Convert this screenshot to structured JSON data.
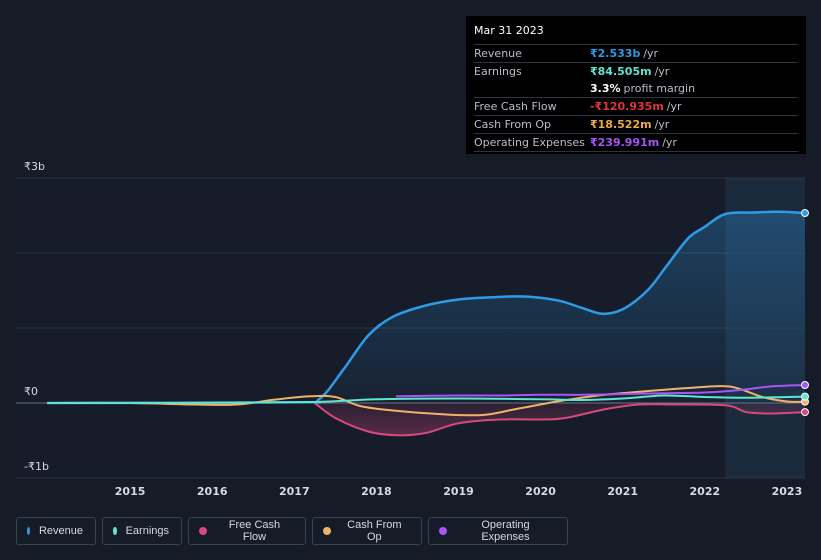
{
  "tooltip": {
    "date": "Mar 31 2023",
    "rows": [
      {
        "label": "Revenue",
        "value": "₹2.533b",
        "unit": "/yr",
        "color": "#2e9be6"
      },
      {
        "label": "Earnings",
        "value": "₹84.505m",
        "unit": "/yr",
        "color": "#5fe5cf"
      },
      {
        "label": "",
        "value": "3.3%",
        "unit": "profit margin",
        "color": "#ffffff"
      },
      {
        "label": "Free Cash Flow",
        "value": "-₹120.935m",
        "unit": "/yr",
        "color": "#e0343f"
      },
      {
        "label": "Cash From Op",
        "value": "₹18.522m",
        "unit": "/yr",
        "color": "#f0a74f"
      },
      {
        "label": "Operating Expenses",
        "value": "₹239.991m",
        "unit": "/yr",
        "color": "#a855f7"
      }
    ]
  },
  "legend": [
    {
      "label": "Revenue",
      "color": "#2e9be6"
    },
    {
      "label": "Earnings",
      "color": "#5fe5cf"
    },
    {
      "label": "Free Cash Flow",
      "color": "#d6487e"
    },
    {
      "label": "Cash From Op",
      "color": "#f0b26a"
    },
    {
      "label": "Operating Expenses",
      "color": "#a855f7"
    }
  ],
  "chart_data": {
    "type": "line",
    "title": "",
    "xlabel": "",
    "ylabel": "",
    "y_tick_labels": [
      "₹3b",
      "₹0",
      "-₹1b"
    ],
    "y_ticks": [
      3,
      0,
      -1
    ],
    "ylim": [
      -1,
      3
    ],
    "xlim": [
      2014.0,
      2023.22
    ],
    "x_tick_labels": [
      "2015",
      "2016",
      "2017",
      "2018",
      "2019",
      "2020",
      "2021",
      "2022",
      "2023"
    ],
    "x_ticks": [
      2015,
      2016,
      2017,
      2018,
      2019,
      2020,
      2021,
      2022,
      2023
    ],
    "highlight_start": 2022.25,
    "series": [
      {
        "name": "Revenue",
        "color": "#2e9be6",
        "fill": true,
        "points": [
          [
            2014.0,
            0
          ],
          [
            2017.0,
            0.01
          ],
          [
            2017.3,
            0.05
          ],
          [
            2017.6,
            0.45
          ],
          [
            2017.9,
            0.9
          ],
          [
            2018.2,
            1.15
          ],
          [
            2018.6,
            1.3
          ],
          [
            2019.0,
            1.38
          ],
          [
            2019.4,
            1.41
          ],
          [
            2019.8,
            1.42
          ],
          [
            2020.2,
            1.37
          ],
          [
            2020.5,
            1.27
          ],
          [
            2020.75,
            1.19
          ],
          [
            2021.0,
            1.25
          ],
          [
            2021.3,
            1.5
          ],
          [
            2021.55,
            1.85
          ],
          [
            2021.8,
            2.2
          ],
          [
            2022.0,
            2.35
          ],
          [
            2022.25,
            2.52
          ],
          [
            2022.6,
            2.54
          ],
          [
            2022.9,
            2.55
          ],
          [
            2023.22,
            2.533
          ]
        ]
      },
      {
        "name": "Earnings",
        "color": "#5fe5cf",
        "fill": false,
        "points": [
          [
            2014.0,
            0
          ],
          [
            2017.0,
            0.01
          ],
          [
            2018.0,
            0.05
          ],
          [
            2019.0,
            0.06
          ],
          [
            2020.0,
            0.05
          ],
          [
            2020.5,
            0.04
          ],
          [
            2021.0,
            0.06
          ],
          [
            2021.5,
            0.1
          ],
          [
            2022.0,
            0.08
          ],
          [
            2022.5,
            0.07
          ],
          [
            2023.22,
            0.085
          ]
        ]
      },
      {
        "name": "Free Cash Flow",
        "color": "#d6487e",
        "fill": true,
        "points": [
          [
            2017.25,
            0
          ],
          [
            2017.5,
            -0.2
          ],
          [
            2017.9,
            -0.38
          ],
          [
            2018.25,
            -0.43
          ],
          [
            2018.6,
            -0.4
          ],
          [
            2019.0,
            -0.27
          ],
          [
            2019.5,
            -0.22
          ],
          [
            2020.0,
            -0.22
          ],
          [
            2020.3,
            -0.2
          ],
          [
            2020.8,
            -0.08
          ],
          [
            2021.2,
            -0.02
          ],
          [
            2021.6,
            -0.02
          ],
          [
            2022.25,
            -0.03
          ],
          [
            2022.5,
            -0.12
          ],
          [
            2022.8,
            -0.14
          ],
          [
            2023.22,
            -0.121
          ]
        ]
      },
      {
        "name": "Cash From Op",
        "color": "#f0b26a",
        "fill": false,
        "points": [
          [
            2014.0,
            0
          ],
          [
            2015.0,
            0
          ],
          [
            2015.8,
            -0.02
          ],
          [
            2016.3,
            -0.02
          ],
          [
            2016.8,
            0.05
          ],
          [
            2017.2,
            0.09
          ],
          [
            2017.5,
            0.08
          ],
          [
            2017.8,
            -0.04
          ],
          [
            2018.2,
            -0.1
          ],
          [
            2018.8,
            -0.15
          ],
          [
            2019.3,
            -0.16
          ],
          [
            2019.7,
            -0.08
          ],
          [
            2020.2,
            0.02
          ],
          [
            2020.7,
            0.1
          ],
          [
            2021.2,
            0.15
          ],
          [
            2021.8,
            0.2
          ],
          [
            2022.3,
            0.22
          ],
          [
            2022.7,
            0.08
          ],
          [
            2023.0,
            0.02
          ],
          [
            2023.22,
            0.0185
          ]
        ]
      },
      {
        "name": "Operating Expenses",
        "color": "#a855f7",
        "fill": false,
        "points": [
          [
            2018.25,
            0.09
          ],
          [
            2019.0,
            0.1
          ],
          [
            2019.5,
            0.1
          ],
          [
            2020.0,
            0.11
          ],
          [
            2020.5,
            0.11
          ],
          [
            2021.0,
            0.12
          ],
          [
            2021.5,
            0.13
          ],
          [
            2022.0,
            0.14
          ],
          [
            2022.4,
            0.17
          ],
          [
            2022.8,
            0.22
          ],
          [
            2023.22,
            0.24
          ]
        ]
      }
    ]
  }
}
